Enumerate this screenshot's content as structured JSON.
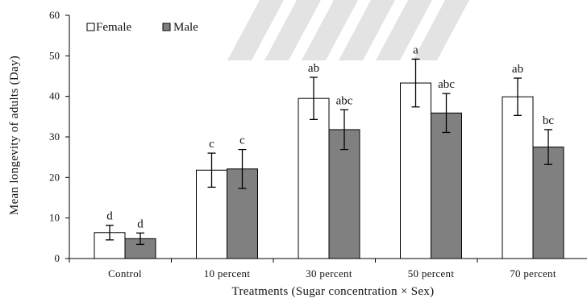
{
  "chart_data": {
    "type": "bar",
    "xlabel": "Treatments (Sugar concentration × Sex)",
    "ylabel": "Mean longevity of adults (Day)",
    "ylim": [
      0,
      60
    ],
    "yticks": [
      0,
      10,
      20,
      30,
      40,
      50,
      60
    ],
    "grid": false,
    "legend_position": "top-left",
    "categories": [
      "Control",
      "10 percent",
      "30 percent",
      "50 percent",
      "70 percent"
    ],
    "series": [
      {
        "name": "Female",
        "color": "#ffffff",
        "values": [
          6.4,
          21.8,
          39.5,
          43.3,
          39.9
        ],
        "errors": [
          1.8,
          4.2,
          5.2,
          5.9,
          4.6
        ],
        "labels": [
          "d",
          "c",
          "ab",
          "a",
          "ab"
        ]
      },
      {
        "name": "Male",
        "color": "#808080",
        "values": [
          4.9,
          22.1,
          31.8,
          35.9,
          27.5
        ],
        "errors": [
          1.4,
          4.8,
          4.9,
          4.8,
          4.3
        ],
        "labels": [
          "d",
          "c",
          "abc",
          "abc",
          "bc"
        ]
      }
    ]
  }
}
